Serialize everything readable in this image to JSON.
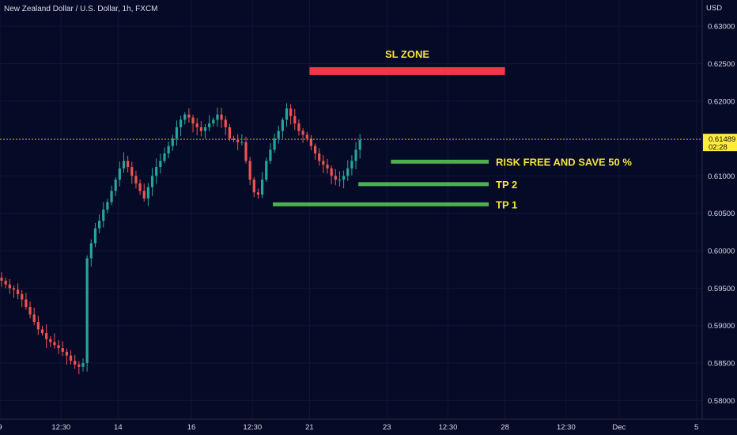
{
  "header": {
    "title": "New Zealand Dollar / U.S. Dollar, 1h, FXCM"
  },
  "chart_data": {
    "type": "candlestick",
    "symbol_label": "New Zealand Dollar / U.S. Dollar, 1h, FXCM",
    "currency_label": "USD",
    "ylim": [
      0.5775,
      0.6335
    ],
    "y_ticks": [
      "0.63000",
      "0.62500",
      "0.62000",
      "0.61500",
      "0.61000",
      "0.60500",
      "0.60000",
      "0.59500",
      "0.59000",
      "0.58500",
      "0.58000"
    ],
    "y_tick_values": [
      0.63,
      0.625,
      0.62,
      0.615,
      0.61,
      0.605,
      0.6,
      0.595,
      0.59,
      0.585,
      0.58
    ],
    "x_ticks": [
      "9",
      "12:30",
      "14",
      "16",
      "12:30",
      "21",
      "23",
      "12:30",
      "28",
      "12:30",
      "Dec",
      "5"
    ],
    "x_tick_index": [
      0,
      15,
      29,
      47,
      62,
      76,
      95,
      110,
      124,
      139,
      152,
      171
    ],
    "current_price": {
      "label": "0.61489",
      "value": 0.61489,
      "countdown": "02:28"
    },
    "bull_color": "#26a69a",
    "bear_color": "#ef5350",
    "close_series": [
      0.596,
      0.5955,
      0.595,
      0.5948,
      0.5942,
      0.5935,
      0.5925,
      0.5915,
      0.5905,
      0.5895,
      0.589,
      0.5882,
      0.5878,
      0.5874,
      0.587,
      0.5865,
      0.586,
      0.5853,
      0.5848,
      0.5845,
      0.585,
      0.599,
      0.601,
      0.603,
      0.604,
      0.6055,
      0.6065,
      0.608,
      0.6095,
      0.611,
      0.612,
      0.6112,
      0.61,
      0.609,
      0.608,
      0.607,
      0.6085,
      0.61,
      0.6112,
      0.612,
      0.613,
      0.614,
      0.615,
      0.6165,
      0.6175,
      0.6182,
      0.6178,
      0.617,
      0.6165,
      0.616,
      0.6165,
      0.617,
      0.6175,
      0.6182,
      0.6175,
      0.6165,
      0.615,
      0.6148,
      0.6145,
      0.6145,
      0.612,
      0.6095,
      0.6078,
      0.6075,
      0.6095,
      0.612,
      0.6135,
      0.615,
      0.616,
      0.6175,
      0.619,
      0.618,
      0.617,
      0.616,
      0.6155,
      0.615,
      0.614,
      0.613,
      0.612,
      0.6115,
      0.611,
      0.61,
      0.6095,
      0.6095,
      0.61,
      0.611,
      0.612,
      0.6135,
      0.6148
    ],
    "annotations": [
      {
        "label": "SL ZONE",
        "color": "#f23645",
        "price": 0.624,
        "from_index": 76,
        "to_index": 124
      },
      {
        "label": "RISK FREE AND SAVE 50 %",
        "color": "#4caf50",
        "price": 0.6119,
        "from_index": 96,
        "to_index": 120
      },
      {
        "label": "TP 2",
        "color": "#4caf50",
        "price": 0.6089,
        "from_index": 88,
        "to_index": 120
      },
      {
        "label": "TP 1",
        "color": "#4caf50",
        "price": 0.6062,
        "from_index": 67,
        "to_index": 120
      }
    ]
  }
}
